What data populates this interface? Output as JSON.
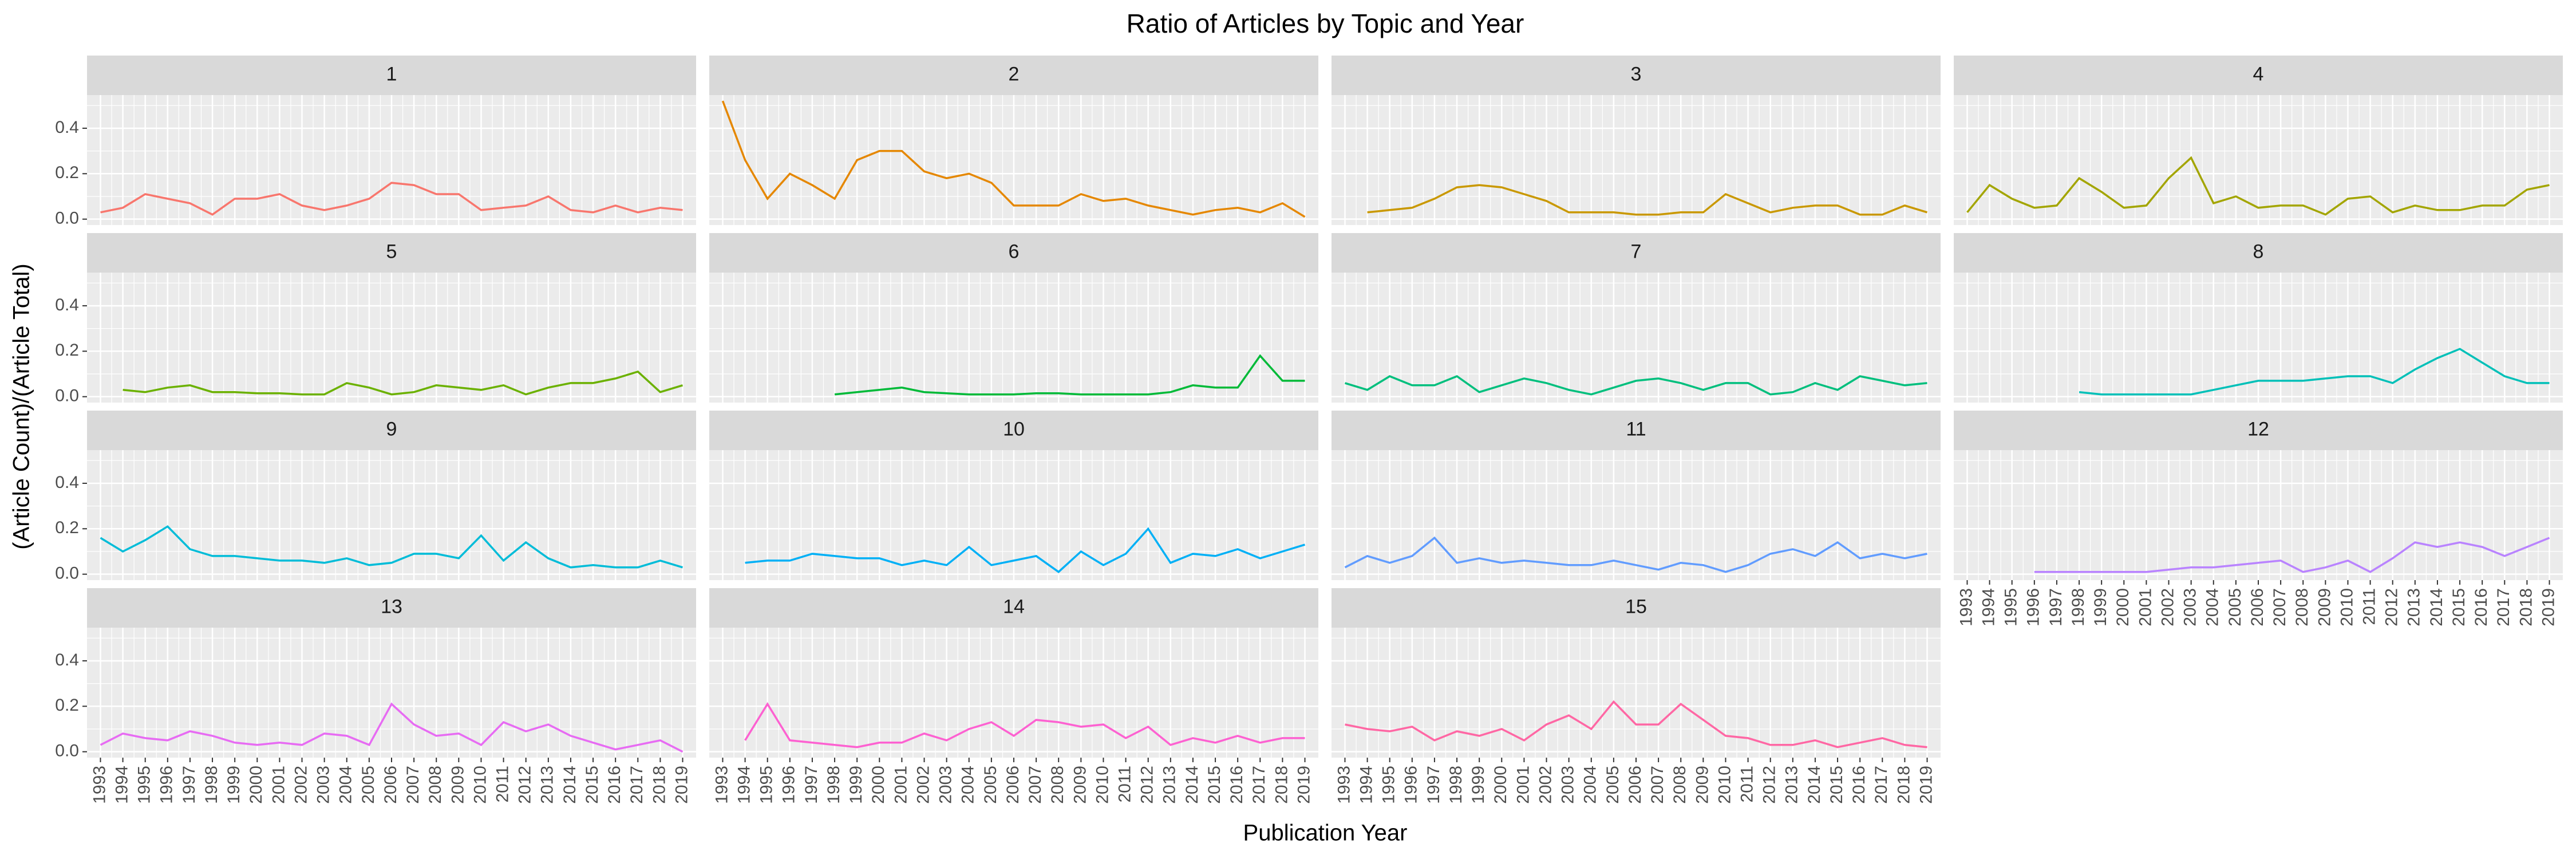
{
  "chart_data": {
    "type": "line",
    "title": "Ratio of Articles by Topic and Year",
    "x_label": "Publication Year",
    "y_label": "(Article Count)/(Article Total)",
    "categories": [
      "1993",
      "1994",
      "1995",
      "1996",
      "1997",
      "1998",
      "1999",
      "2000",
      "2001",
      "2002",
      "2003",
      "2004",
      "2005",
      "2006",
      "2007",
      "2008",
      "2009",
      "2010",
      "2011",
      "2012",
      "2013",
      "2014",
      "2015",
      "2016",
      "2017",
      "2018",
      "2019"
    ],
    "ylim": [
      -0.026,
      0.546
    ],
    "yticks": [
      {
        "value": 0,
        "label": "0.0"
      },
      0.2,
      0.4
    ],
    "grid": true,
    "series": [
      {
        "name": "1",
        "color": "#F8766D",
        "values": [
          0.03,
          0.05,
          0.11,
          0.09,
          0.07,
          0.02,
          0.09,
          0.09,
          0.11,
          0.06,
          0.04,
          0.06,
          0.09,
          0.16,
          0.15,
          0.11,
          0.11,
          0.04,
          0.05,
          0.06,
          0.1,
          0.04,
          0.03,
          0.06,
          0.03,
          0.05,
          0.04
        ]
      },
      {
        "name": "2",
        "color": "#E58700",
        "values": [
          0.52,
          0.26,
          0.09,
          0.2,
          0.15,
          0.09,
          0.26,
          0.3,
          0.3,
          0.21,
          0.18,
          0.2,
          0.16,
          0.06,
          0.06,
          0.06,
          0.11,
          0.08,
          0.09,
          0.06,
          0.04,
          0.02,
          0.04,
          0.05,
          0.03,
          0.07,
          0.01
        ]
      },
      {
        "name": "3",
        "color": "#C99800",
        "values": [
          null,
          0.03,
          0.04,
          0.05,
          0.09,
          0.14,
          0.15,
          0.14,
          0.11,
          0.08,
          0.03,
          0.03,
          0.03,
          0.02,
          0.02,
          0.03,
          0.03,
          0.11,
          0.07,
          0.03,
          0.05,
          0.06,
          0.06,
          0.02,
          0.02,
          0.06,
          0.03
        ]
      },
      {
        "name": "4",
        "color": "#A3A500",
        "values": [
          0.03,
          0.15,
          0.09,
          0.05,
          0.06,
          0.18,
          0.12,
          0.05,
          0.06,
          0.18,
          0.27,
          0.07,
          0.1,
          0.05,
          0.06,
          0.06,
          0.02,
          0.09,
          0.1,
          0.03,
          0.06,
          0.04,
          0.04,
          0.06,
          0.06,
          0.13,
          0.15
        ]
      },
      {
        "name": "5",
        "color": "#6BB100",
        "values": [
          null,
          0.03,
          0.02,
          0.04,
          0.05,
          0.02,
          0.02,
          0.015,
          0.015,
          0.01,
          0.01,
          0.06,
          0.04,
          0.01,
          0.02,
          0.05,
          0.04,
          0.03,
          0.05,
          0.01,
          0.04,
          0.06,
          0.06,
          0.08,
          0.11,
          0.02,
          0.05
        ]
      },
      {
        "name": "6",
        "color": "#00BA38",
        "values": [
          null,
          null,
          null,
          null,
          null,
          0.01,
          0.02,
          0.03,
          0.04,
          0.02,
          0.015,
          0.01,
          0.01,
          0.01,
          0.015,
          0.015,
          0.01,
          0.01,
          0.01,
          0.01,
          0.02,
          0.05,
          0.04,
          0.04,
          0.18,
          0.07,
          0.07
        ]
      },
      {
        "name": "7",
        "color": "#00BF7D",
        "values": [
          0.06,
          0.03,
          0.09,
          0.05,
          0.05,
          0.09,
          0.02,
          0.05,
          0.08,
          0.06,
          0.03,
          0.01,
          0.04,
          0.07,
          0.08,
          0.06,
          0.03,
          0.06,
          0.06,
          0.01,
          0.02,
          0.06,
          0.03,
          0.09,
          0.07,
          0.05,
          0.06
        ]
      },
      {
        "name": "8",
        "color": "#00C0B8",
        "values": [
          null,
          null,
          null,
          null,
          null,
          0.02,
          0.01,
          0.01,
          0.01,
          0.01,
          0.01,
          0.03,
          0.05,
          0.07,
          0.07,
          0.07,
          0.08,
          0.09,
          0.09,
          0.06,
          0.12,
          0.17,
          0.21,
          0.15,
          0.09,
          0.06,
          0.06
        ]
      },
      {
        "name": "9",
        "color": "#00BCD8",
        "values": [
          0.16,
          0.1,
          0.15,
          0.21,
          0.11,
          0.08,
          0.08,
          0.07,
          0.06,
          0.06,
          0.05,
          0.07,
          0.04,
          0.05,
          0.09,
          0.09,
          0.07,
          0.17,
          0.06,
          0.14,
          0.07,
          0.03,
          0.04,
          0.03,
          0.03,
          0.06,
          0.03
        ]
      },
      {
        "name": "10",
        "color": "#00B0F6",
        "values": [
          null,
          0.05,
          0.06,
          0.06,
          0.09,
          0.08,
          0.07,
          0.07,
          0.04,
          0.06,
          0.04,
          0.12,
          0.04,
          0.06,
          0.08,
          0.01,
          0.1,
          0.04,
          0.09,
          0.2,
          0.05,
          0.09,
          0.08,
          0.11,
          0.07,
          0.1,
          0.13
        ]
      },
      {
        "name": "11",
        "color": "#619CFF",
        "values": [
          0.03,
          0.08,
          0.05,
          0.08,
          0.16,
          0.05,
          0.07,
          0.05,
          0.06,
          0.05,
          0.04,
          0.04,
          0.06,
          0.04,
          0.02,
          0.05,
          0.04,
          0.01,
          0.04,
          0.09,
          0.11,
          0.08,
          0.14,
          0.07,
          0.09,
          0.07,
          0.09
        ]
      },
      {
        "name": "12",
        "color": "#B983FF",
        "values": [
          null,
          null,
          null,
          0.01,
          0.01,
          0.01,
          0.01,
          0.01,
          0.01,
          0.02,
          0.03,
          0.03,
          0.04,
          0.05,
          0.06,
          0.01,
          0.03,
          0.06,
          0.01,
          0.07,
          0.14,
          0.12,
          0.14,
          0.12,
          0.08,
          0.12,
          0.16
        ]
      },
      {
        "name": "13",
        "color": "#E76BF3",
        "values": [
          0.03,
          0.08,
          0.06,
          0.05,
          0.09,
          0.07,
          0.04,
          0.03,
          0.04,
          0.03,
          0.08,
          0.07,
          0.03,
          0.21,
          0.12,
          0.07,
          0.08,
          0.03,
          0.13,
          0.09,
          0.12,
          0.07,
          0.04,
          0.01,
          0.03,
          0.05,
          0.0
        ]
      },
      {
        "name": "14",
        "color": "#FD61D1",
        "values": [
          null,
          0.05,
          0.21,
          0.05,
          0.04,
          0.03,
          0.02,
          0.04,
          0.04,
          0.08,
          0.05,
          0.1,
          0.13,
          0.07,
          0.14,
          0.13,
          0.11,
          0.12,
          0.06,
          0.11,
          0.03,
          0.06,
          0.04,
          0.07,
          0.04,
          0.06,
          0.06
        ]
      },
      {
        "name": "15",
        "color": "#FF67A4",
        "values": [
          0.12,
          0.1,
          0.09,
          0.11,
          0.05,
          0.09,
          0.07,
          0.1,
          0.05,
          0.12,
          0.16,
          0.1,
          0.22,
          0.12,
          0.12,
          0.21,
          0.14,
          0.07,
          0.06,
          0.03,
          0.03,
          0.05,
          0.02,
          0.04,
          0.06,
          0.03,
          0.02
        ]
      }
    ]
  }
}
